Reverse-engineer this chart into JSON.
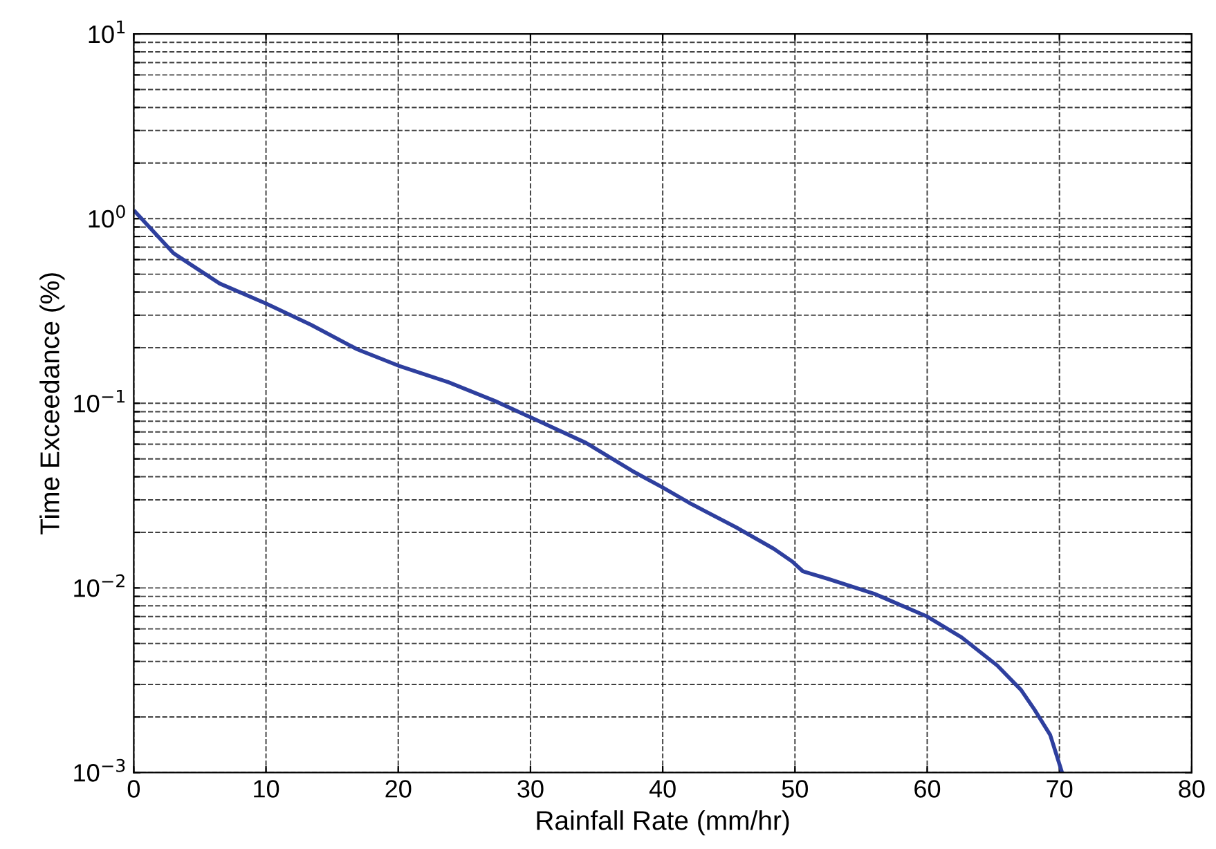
{
  "chart_data": {
    "type": "line",
    "xlabel": "Rainfall Rate (mm/hr)",
    "ylabel": "Time Exceedance (%)",
    "log": "y",
    "grid": true,
    "line_style": "solid",
    "xlim": [
      0,
      80
    ],
    "xticks": [
      0,
      10,
      20,
      30,
      40,
      50,
      60,
      70,
      80
    ],
    "ylim": [
      0.001,
      10
    ],
    "yticks": [
      {
        "value": 0.001,
        "label": "10$^{−3}$"
      },
      {
        "value": 0.002,
        "label": null
      },
      {
        "value": 0.003,
        "label": null
      },
      {
        "value": 0.004,
        "label": null
      },
      {
        "value": 0.005,
        "label": null
      },
      {
        "value": 0.006,
        "label": null
      },
      {
        "value": 0.007,
        "label": null
      },
      {
        "value": 0.008,
        "label": null
      },
      {
        "value": 0.009,
        "label": null
      },
      {
        "value": 0.01,
        "label": "10$^{−2}$"
      },
      {
        "value": 0.02,
        "label": null
      },
      {
        "value": 0.03,
        "label": null
      },
      {
        "value": 0.04,
        "label": null
      },
      {
        "value": 0.05,
        "label": null
      },
      {
        "value": 0.06,
        "label": null
      },
      {
        "value": 0.07,
        "label": null
      },
      {
        "value": 0.08,
        "label": null
      },
      {
        "value": 0.09,
        "label": null
      },
      {
        "value": 0.1,
        "label": "10$^{−1}$"
      },
      {
        "value": 0.2,
        "label": null
      },
      {
        "value": 0.3,
        "label": null
      },
      {
        "value": 0.4,
        "label": null
      },
      {
        "value": 0.5,
        "label": null
      },
      {
        "value": 0.6,
        "label": null
      },
      {
        "value": 0.7,
        "label": null
      },
      {
        "value": 0.8,
        "label": null
      },
      {
        "value": 0.9,
        "label": null
      },
      {
        "value": 1,
        "label": "10$^{0}$"
      },
      {
        "value": 2,
        "label": null
      },
      {
        "value": 3,
        "label": null
      },
      {
        "value": 4,
        "label": null
      },
      {
        "value": 5,
        "label": null
      },
      {
        "value": 6,
        "label": null
      },
      {
        "value": 7,
        "label": null
      },
      {
        "value": 8,
        "label": null
      },
      {
        "value": 9,
        "label": null
      },
      {
        "value": 10,
        "label": "10$^{1}$"
      }
    ],
    "series": [
      {
        "color": "#2e3f9e",
        "x": [
          0.1,
          3,
          6.5,
          10,
          13.4,
          16.9,
          20,
          23.8,
          27.3,
          30,
          34.2,
          37.7,
          40,
          42.2,
          45.6,
          48.4,
          49.8,
          50.6,
          52.5,
          56,
          60,
          62.6,
          65.3,
          67.1,
          68.1,
          69.3,
          70.2
        ],
        "values": [
          1.09,
          0.65,
          0.445,
          0.347,
          0.266,
          0.196,
          0.16,
          0.13,
          0.103,
          0.084,
          0.061,
          0.043,
          0.035,
          0.0284,
          0.0212,
          0.0163,
          0.0139,
          0.0123,
          0.0112,
          0.0093,
          0.007,
          0.0054,
          0.0038,
          0.0028,
          0.0022,
          0.0016,
          0.001
        ]
      }
    ]
  }
}
